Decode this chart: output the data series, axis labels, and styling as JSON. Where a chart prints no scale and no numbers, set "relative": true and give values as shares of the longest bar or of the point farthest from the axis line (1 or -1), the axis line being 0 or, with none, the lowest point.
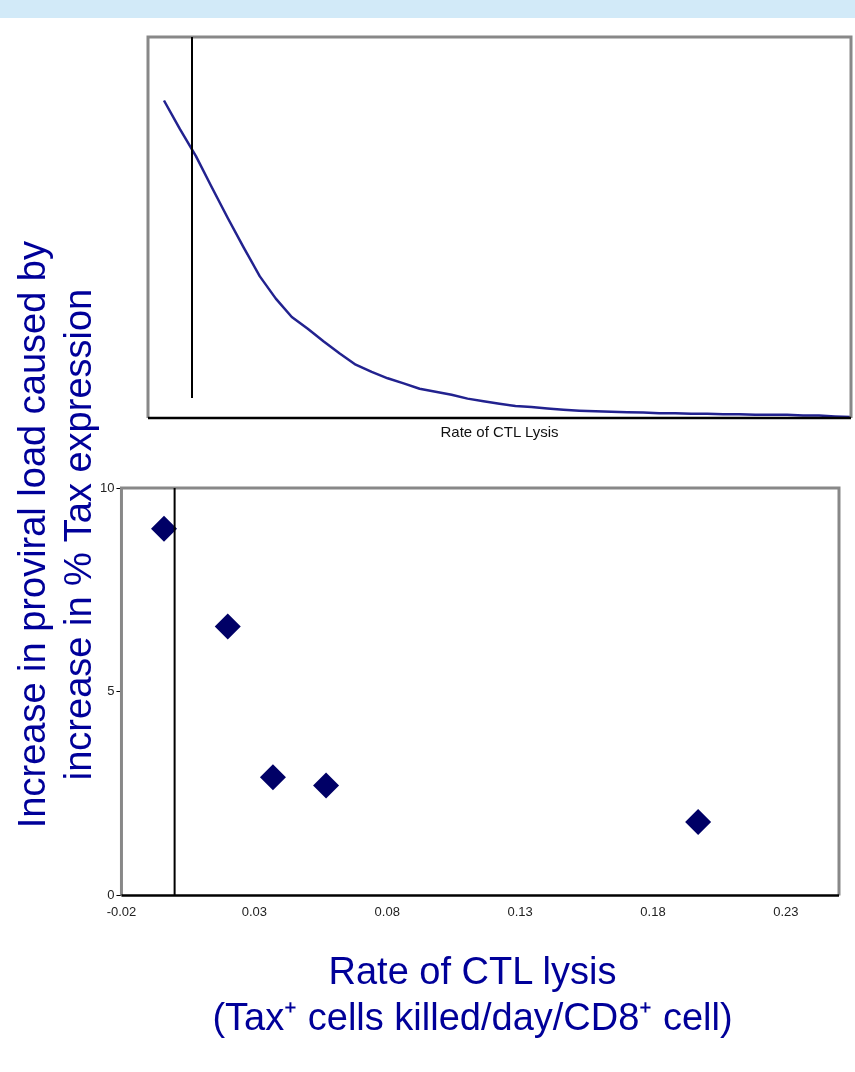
{
  "chart_data": [
    {
      "type": "line",
      "xlabel": "Rate of CTL Lysis",
      "relative": true,
      "tick_labels": false,
      "grid": false,
      "legend": false,
      "marker": "none",
      "categories": [
        null,
        null,
        null,
        null,
        null,
        null,
        null,
        null,
        null,
        null,
        null,
        null,
        null,
        null,
        null,
        null,
        null,
        null,
        null,
        null,
        null,
        null,
        null,
        null,
        null,
        null,
        null,
        null,
        null,
        null,
        null,
        null,
        null,
        null,
        null,
        null,
        null,
        null,
        null,
        null,
        null,
        null,
        null,
        null,
        null
      ],
      "series": [
        {
          "color": "#22228f",
          "values": [
            null,
            1.0,
            0.91,
            0.825,
            0.726,
            0.629,
            0.536,
            0.446,
            0.376,
            0.318,
            0.281,
            0.241,
            0.203,
            0.168,
            0.145,
            0.125,
            0.109,
            0.092,
            0.083,
            0.073,
            0.061,
            0.053,
            0.045,
            0.038,
            0.035,
            0.03,
            0.026,
            0.023,
            0.021,
            0.02,
            0.018,
            0.017,
            0.015,
            0.015,
            0.013,
            0.013,
            0.012,
            0.012,
            0.01,
            0.01,
            0.01,
            0.008,
            0.008,
            0.005,
            0.003
          ]
        }
      ]
    },
    {
      "type": "scatter",
      "ylabel": "Increase in proviral load caused by\nincrease in % Tax expression",
      "xlabel": "Rate of CTL lysis\n(Tax⁺ cells killed/day/CD8⁺ cell)",
      "grid": false,
      "legend": false,
      "marker": "diamond",
      "x": [
        -0.004,
        0.02,
        0.037,
        0.057,
        0.197
      ],
      "values": [
        9.0,
        6.6,
        2.9,
        2.7,
        1.8
      ],
      "color": "#000066",
      "xlim": [
        -0.02,
        0.25
      ],
      "xticks": [
        -0.02,
        0.03,
        0.08,
        0.13,
        0.18,
        0.23
      ],
      "ylim": [
        0,
        10
      ],
      "yticks": [
        0,
        5,
        10
      ],
      "ref_lines": [
        {
          "axis": "x",
          "value": 0
        }
      ]
    }
  ]
}
